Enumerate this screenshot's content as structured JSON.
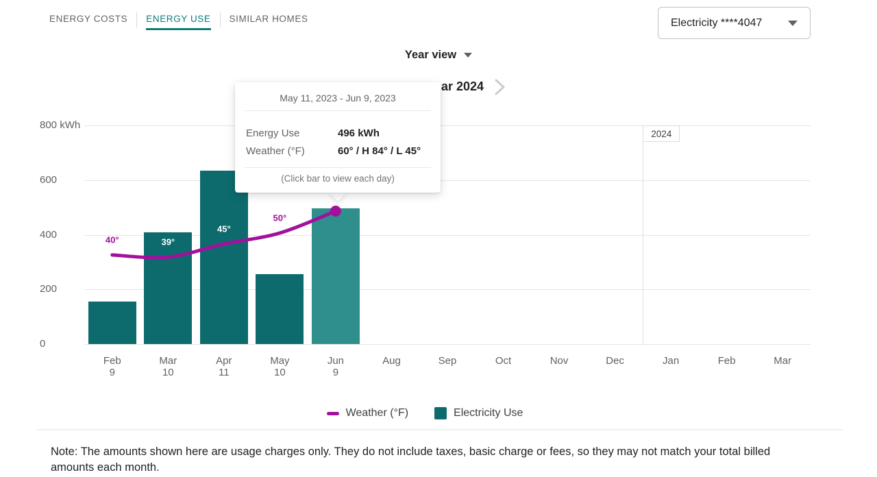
{
  "tabs": {
    "items": [
      {
        "label": "ENERGY COSTS",
        "active": false
      },
      {
        "label": "ENERGY USE",
        "active": true
      },
      {
        "label": "SIMILAR HOMES",
        "active": false
      }
    ]
  },
  "account_selector": {
    "value": "Electricity ****4047"
  },
  "view_selector": {
    "label": "Year view"
  },
  "period_nav": {
    "visible_label": "ar 2024"
  },
  "tooltip": {
    "title": "May 11, 2023 - Jun 9, 2023",
    "rows": [
      {
        "label": "Energy Use",
        "value": "496 kWh"
      },
      {
        "label": "Weather (°F)",
        "value": "60° / H 84° / L 45°"
      }
    ],
    "hint": "(Click bar to view each day)"
  },
  "chart_data": {
    "type": "bar",
    "title": "",
    "ylabel": "kWh",
    "ylim": [
      0,
      800
    ],
    "grid": "horizontal",
    "yticks": [
      {
        "value": 0,
        "label": "0"
      },
      {
        "value": 200,
        "label": "200"
      },
      {
        "value": 400,
        "label": "400"
      },
      {
        "value": 600,
        "label": "600"
      },
      {
        "value": 800,
        "label": "800 kWh"
      }
    ],
    "categories": [
      {
        "month": "Feb",
        "day": "9"
      },
      {
        "month": "Mar",
        "day": "10"
      },
      {
        "month": "Apr",
        "day": "11"
      },
      {
        "month": "May",
        "day": "10"
      },
      {
        "month": "Jun",
        "day": "9"
      },
      {
        "month": "Aug",
        "day": ""
      },
      {
        "month": "Sep",
        "day": ""
      },
      {
        "month": "Oct",
        "day": ""
      },
      {
        "month": "Nov",
        "day": ""
      },
      {
        "month": "Dec",
        "day": ""
      },
      {
        "month": "Jan",
        "day": ""
      },
      {
        "month": "Feb",
        "day": ""
      },
      {
        "month": "Mar",
        "day": ""
      }
    ],
    "series": [
      {
        "name": "Electricity Use",
        "type": "bar",
        "unit": "kWh",
        "color": "#0D6B6D",
        "values": [
          155,
          410,
          635,
          255,
          496,
          null,
          null,
          null,
          null,
          null,
          null,
          null,
          null
        ]
      },
      {
        "name": "Weather (°F)",
        "type": "line",
        "unit": "°F",
        "color": "#A2109C",
        "values": [
          40,
          39,
          45,
          50,
          60,
          null,
          null,
          null,
          null,
          null,
          null,
          null,
          null
        ]
      }
    ],
    "selected_bar_index": 4,
    "selected_bar_color": "#2F8F8D",
    "point_labels": [
      {
        "index": 0,
        "text": "40°",
        "variant": "line"
      },
      {
        "index": 1,
        "text": "39°",
        "variant": "on-bar"
      },
      {
        "index": 2,
        "text": "45°",
        "variant": "on-bar"
      },
      {
        "index": 3,
        "text": "50°",
        "variant": "line"
      }
    ],
    "year_marker": {
      "label": "2024",
      "boundary_after_index": 9
    }
  },
  "legend": {
    "items": [
      {
        "label": "Weather (°F)",
        "color": "#A2109C",
        "shape": "line"
      },
      {
        "label": "Electricity Use",
        "color": "#0D6B6D",
        "shape": "square"
      }
    ]
  },
  "note": {
    "text": "Note: The amounts shown here are usage charges only. They do not include taxes, basic charge or fees, so they may not match your total billed amounts each month."
  }
}
